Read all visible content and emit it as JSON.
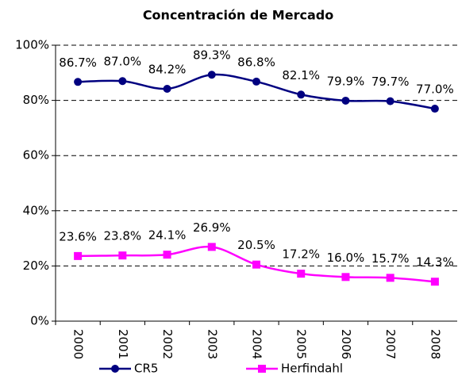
{
  "chart_data": {
    "type": "line",
    "title": "Concentración de Mercado",
    "categories": [
      "2000",
      "2001",
      "2002",
      "2003",
      "2004",
      "2005",
      "2006",
      "2007",
      "2008"
    ],
    "series": [
      {
        "name": "CR5",
        "color": "#000080",
        "marker": "circle",
        "values": [
          86.7,
          87.0,
          84.2,
          89.3,
          86.8,
          82.1,
          79.9,
          79.7,
          77.0
        ],
        "value_labels": [
          "86.7%",
          "87.0%",
          "84.2%",
          "89.3%",
          "86.8%",
          "82.1%",
          "79.9%",
          "79.7%",
          "77.0%"
        ]
      },
      {
        "name": "Herfindahl",
        "color": "#ff00ff",
        "marker": "square",
        "values": [
          23.6,
          23.8,
          24.1,
          26.9,
          20.5,
          17.2,
          16.0,
          15.7,
          14.3
        ],
        "value_labels": [
          "23.6%",
          "23.8%",
          "24.1%",
          "26.9%",
          "20.5%",
          "17.2%",
          "16.0%",
          "15.7%",
          "14.3%"
        ]
      }
    ],
    "ylim": [
      0,
      100
    ],
    "yticks": [
      {
        "value": 0,
        "label": "0%"
      },
      {
        "value": 20,
        "label": "20%"
      },
      {
        "value": 40,
        "label": "40%"
      },
      {
        "value": 60,
        "label": "60%"
      },
      {
        "value": 80,
        "label": "80%"
      },
      {
        "value": 100,
        "label": "100%"
      }
    ],
    "grid": true,
    "smooth": true,
    "legend": "bottom"
  }
}
